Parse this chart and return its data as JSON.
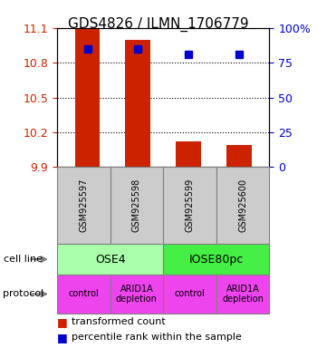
{
  "title": "GDS4826 / ILMN_1706779",
  "samples": [
    "GSM925597",
    "GSM925598",
    "GSM925599",
    "GSM925600"
  ],
  "bar_values": [
    11.1,
    11.0,
    10.12,
    10.09
  ],
  "bar_bottom": 9.9,
  "percentile_values": [
    10.92,
    10.92,
    10.87,
    10.87
  ],
  "ylim": [
    9.9,
    11.1
  ],
  "yticks_left": [
    9.9,
    10.2,
    10.5,
    10.8,
    11.1
  ],
  "yticks_right": [
    0,
    25,
    50,
    75,
    100
  ],
  "ytick_labels_right": [
    "0",
    "25",
    "50",
    "75",
    "100%"
  ],
  "bar_color": "#cc2200",
  "percentile_color": "#0000cc",
  "cell_lines": [
    [
      "OSE4",
      2
    ],
    [
      "IOSE80pc",
      2
    ]
  ],
  "cell_line_colors": [
    "#aaffaa",
    "#44ee44"
  ],
  "protocols": [
    "control",
    "ARID1A\ndepletion",
    "control",
    "ARID1A\ndepletion"
  ],
  "protocol_color": "#ee44ee",
  "legend_red_label": "transformed count",
  "legend_blue_label": "percentile rank within the sample",
  "cell_line_label": "cell line",
  "protocol_label": "protocol",
  "tick_label_color_left": "#cc2200",
  "tick_label_color_right": "#0000cc"
}
